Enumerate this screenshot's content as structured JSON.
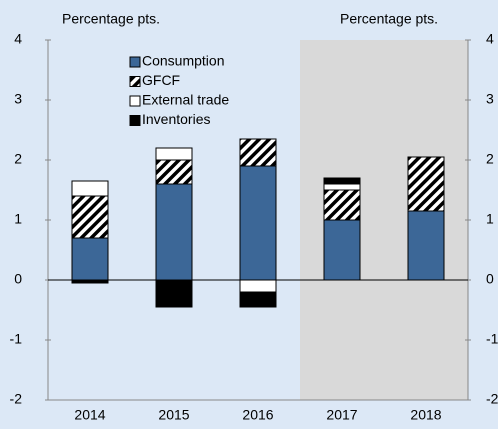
{
  "chart_data": {
    "type": "bar",
    "stacked": true,
    "y_label": "Percentage pts.",
    "y2_label": "Percentage pts.",
    "categories": [
      "2014",
      "2015",
      "2016",
      "2017",
      "2018"
    ],
    "series": [
      {
        "name": "Consumption",
        "color": "#3c6797",
        "values": [
          0.7,
          1.6,
          1.9,
          1.0,
          1.15
        ]
      },
      {
        "name": "GFCF",
        "color": "#000000",
        "hatch": true,
        "values": [
          0.7,
          0.4,
          0.45,
          0.5,
          0.9
        ]
      },
      {
        "name": "External trade",
        "color": "#ffffff",
        "values": [
          0.25,
          0.2,
          -0.2,
          0.1,
          0
        ]
      },
      {
        "name": "Inventories",
        "color": "#000000",
        "values": [
          -0.05,
          -0.45,
          -0.25,
          0.1,
          0
        ]
      }
    ],
    "ylim": [
      -2,
      4
    ],
    "yticks": [
      -2,
      -1,
      0,
      1,
      2,
      3,
      4
    ],
    "y2lim": [
      -2,
      4
    ],
    "y2ticks": [
      -2,
      -1,
      0,
      1,
      2,
      3,
      4
    ],
    "shaded_from": "2017",
    "shade_color": "#d9d9d9",
    "background": "#dce8f6",
    "legend": "upper left"
  }
}
